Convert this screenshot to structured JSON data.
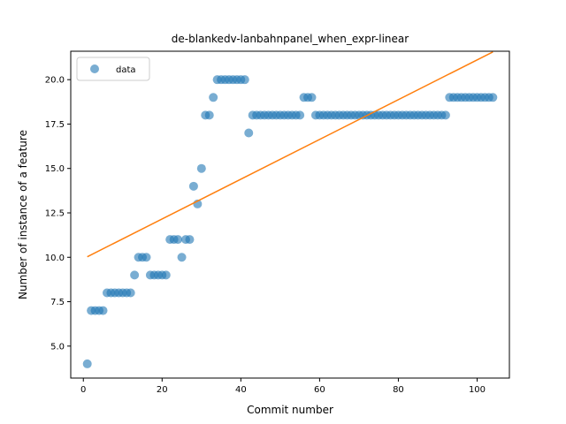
{
  "chart_data": {
    "type": "scatter",
    "title": "de-blankedv-lanbahnpanel_when_expr-linear",
    "xlabel": "Commit number",
    "ylabel": "Number of instance of a feature",
    "xlim": [
      -3.2,
      108.2
    ],
    "ylim": [
      3.2,
      21.6
    ],
    "xticks": [
      0,
      20,
      40,
      60,
      80,
      100
    ],
    "yticks": [
      5.0,
      7.5,
      10.0,
      12.5,
      15.0,
      17.5,
      20.0
    ],
    "xtick_labels": [
      "0",
      "20",
      "40",
      "60",
      "80",
      "100"
    ],
    "ytick_labels": [
      "5.0",
      "7.5",
      "10.0",
      "12.5",
      "15.0",
      "17.5",
      "20.0"
    ],
    "legend": {
      "placement": "upper-left",
      "entries": [
        "data"
      ]
    },
    "colors": {
      "points": "#1f77b4",
      "fit": "#ff7f0e"
    },
    "series": [
      {
        "name": "data",
        "kind": "scatter",
        "x": [
          1,
          2,
          3,
          4,
          5,
          6,
          7,
          8,
          9,
          10,
          11,
          12,
          13,
          14,
          15,
          16,
          17,
          18,
          19,
          20,
          21,
          22,
          23,
          24,
          25,
          26,
          27,
          28,
          29,
          30,
          31,
          32,
          33,
          34,
          35,
          36,
          37,
          38,
          39,
          40,
          41,
          42,
          43,
          44,
          45,
          46,
          47,
          48,
          49,
          50,
          51,
          52,
          53,
          54,
          55,
          56,
          57,
          58,
          59,
          60,
          61,
          62,
          63,
          64,
          65,
          66,
          67,
          68,
          69,
          70,
          71,
          72,
          73,
          74,
          75,
          76,
          77,
          78,
          79,
          80,
          81,
          82,
          83,
          84,
          85,
          86,
          87,
          88,
          89,
          90,
          91,
          92,
          93,
          94,
          95,
          96,
          97,
          98,
          99,
          100,
          101,
          102,
          103,
          104
        ],
        "y": [
          4,
          7,
          7,
          7,
          7,
          8,
          8,
          8,
          8,
          8,
          8,
          8,
          9,
          10,
          10,
          10,
          9,
          9,
          9,
          9,
          9,
          11,
          11,
          11,
          10,
          11,
          11,
          14,
          13,
          15,
          18,
          18,
          19,
          20,
          20,
          20,
          20,
          20,
          20,
          20,
          20,
          17,
          18,
          18,
          18,
          18,
          18,
          18,
          18,
          18,
          18,
          18,
          18,
          18,
          18,
          19,
          19,
          19,
          18,
          18,
          18,
          18,
          18,
          18,
          18,
          18,
          18,
          18,
          18,
          18,
          18,
          18,
          18,
          18,
          18,
          18,
          18,
          18,
          18,
          18,
          18,
          18,
          18,
          18,
          18,
          18,
          18,
          18,
          18,
          18,
          18,
          18,
          19,
          19,
          19,
          19,
          19,
          19,
          19,
          19,
          19,
          19,
          19,
          19
        ]
      },
      {
        "name": "",
        "kind": "line",
        "x": [
          1,
          104
        ],
        "y": [
          10.03,
          21.56
        ]
      }
    ]
  }
}
